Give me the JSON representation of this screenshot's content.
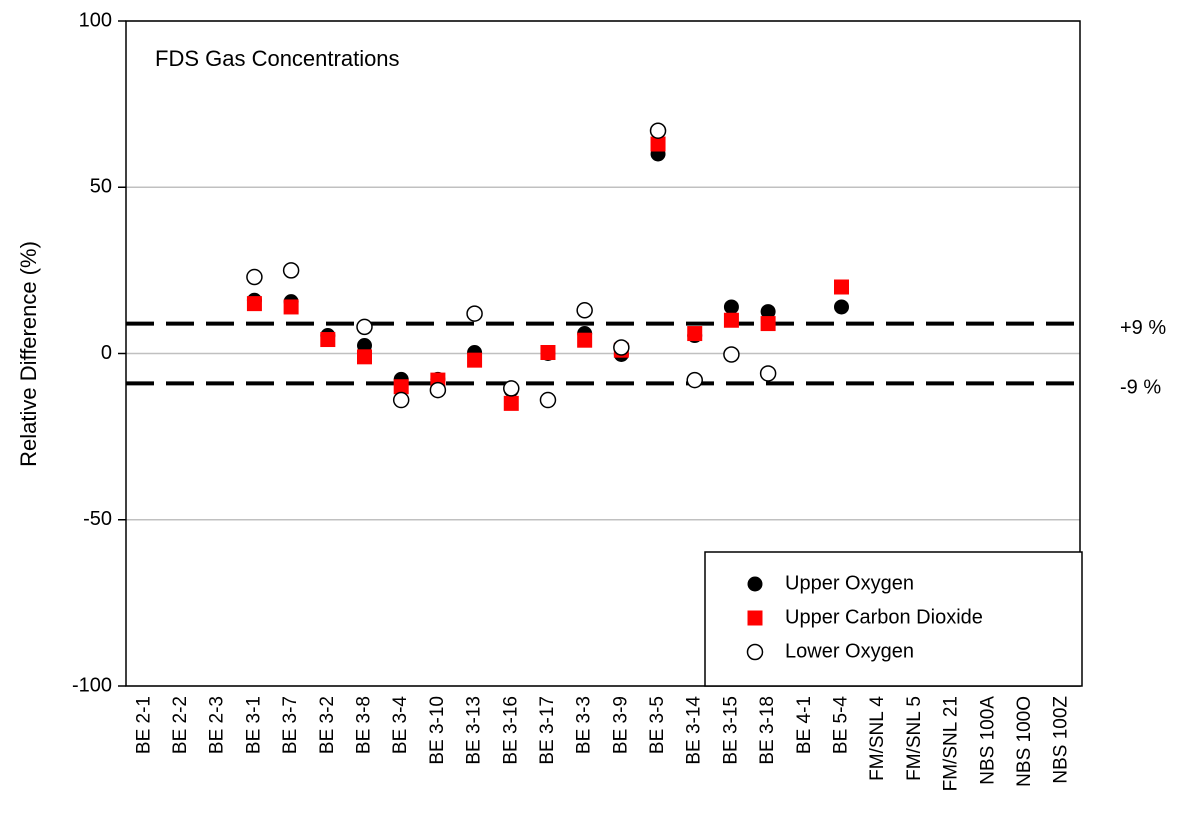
{
  "chart_data": {
    "type": "scatter",
    "title": "FDS Gas Concentrations",
    "y_label": "Relative Difference (%)",
    "categories": [
      "BE 2-1",
      "BE 2-2",
      "BE 2-3",
      "BE 3-1",
      "BE 3-7",
      "BE 3-2",
      "BE 3-8",
      "BE 3-4",
      "BE 3-10",
      "BE 3-13",
      "BE 3-16",
      "BE 3-17",
      "BE 3-3",
      "BE 3-9",
      "BE 3-5",
      "BE 3-14",
      "BE 3-15",
      "BE 3-18",
      "BE 4-1",
      "BE 5-4",
      "FM/SNL 4",
      "FM/SNL 5",
      "FM/SNL 21",
      "NBS 100A",
      "NBS 100O",
      "NBS 100Z"
    ],
    "series": [
      {
        "name": "Upper Oxygen",
        "color": "#000000",
        "marker": "circle",
        "values": [
          null,
          null,
          null,
          16,
          15.6,
          5.4,
          2.4,
          -7.8,
          -7.8,
          0.3,
          -11,
          0,
          6,
          -0.3,
          60,
          5.4,
          14,
          12.6,
          null,
          14,
          null,
          null,
          null,
          null,
          null,
          null
        ]
      },
      {
        "name": "Upper Carbon Dioxide",
        "color": "#ff0000",
        "marker": "square",
        "values": [
          null,
          null,
          null,
          15,
          14,
          4.2,
          -1,
          -10,
          -8,
          -2,
          -15,
          0.3,
          4,
          1,
          63,
          6,
          10,
          9,
          null,
          20,
          null,
          null,
          null,
          null,
          null,
          null
        ]
      },
      {
        "name": "Lower Oxygen",
        "color": "#000000",
        "marker": "open-circle",
        "values": [
          null,
          null,
          null,
          23,
          25,
          null,
          8,
          -14,
          -11,
          12,
          -10.5,
          -14,
          13,
          1.8,
          67,
          -8,
          -0.3,
          -6,
          null,
          null,
          null,
          null,
          null,
          null,
          null,
          null
        ]
      }
    ],
    "reference_lines": [
      {
        "value": 9,
        "label": "+9 %"
      },
      {
        "value": -9,
        "label": "-9 %"
      }
    ],
    "ylim": [
      -100,
      100
    ],
    "yticks": [
      -100,
      -50,
      0,
      50,
      100
    ],
    "grid": true,
    "legend": "lower right"
  }
}
